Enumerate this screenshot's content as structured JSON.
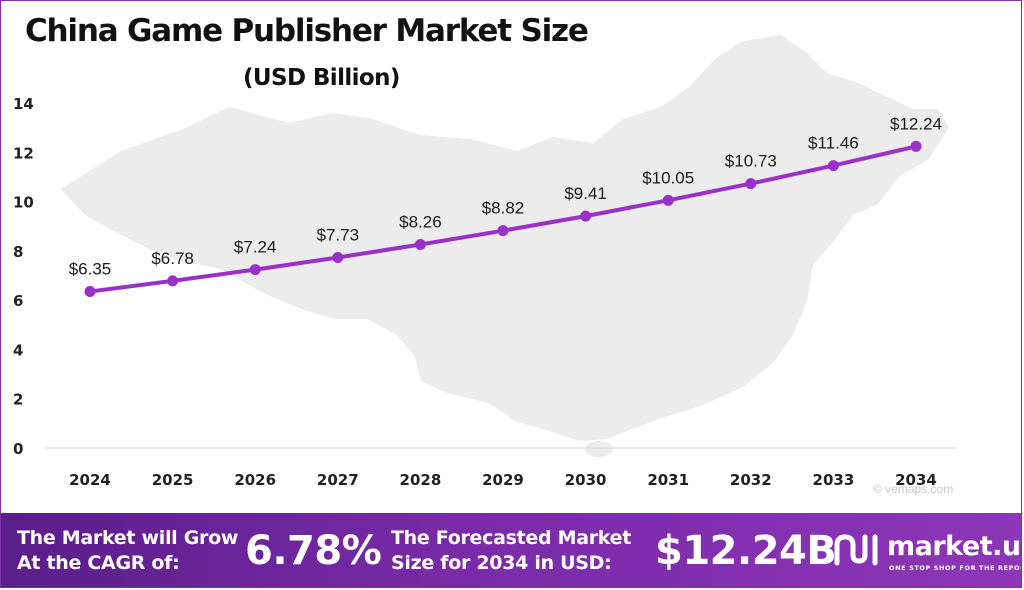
{
  "title": "China Game Publisher Market Size",
  "subtitle": "(USD Billion)",
  "footer": {
    "cagr_label_line1": "The Market will Grow",
    "cagr_label_line2": "At the CAGR of:",
    "cagr_value": "6.78%",
    "forecast_label_line1": "The Forecasted Market",
    "forecast_label_line2": "Size for 2034 in USD:",
    "forecast_value": "$12.24B",
    "brand_name": "market.us",
    "brand_tagline": "ONE STOP SHOP FOR THE REPORTS",
    "brand_icon": "market-us-logo-icon"
  },
  "watermark": "© vemaps.com",
  "colors": {
    "line": "#9b30c9",
    "marker": "#9b30c9",
    "footer_bg": "#7a2aa8",
    "map": "#ececec"
  },
  "chart_data": {
    "type": "line",
    "x": [
      "2024",
      "2025",
      "2026",
      "2027",
      "2028",
      "2029",
      "2030",
      "2031",
      "2032",
      "2033",
      "2034"
    ],
    "values": [
      6.35,
      6.78,
      7.24,
      7.73,
      8.26,
      8.82,
      9.41,
      10.05,
      10.73,
      11.46,
      12.24
    ],
    "data_labels": [
      "$6.35",
      "$6.78",
      "$7.24",
      "$7.73",
      "$8.26",
      "$8.82",
      "$9.41",
      "$10.05",
      "$10.73",
      "$11.46",
      "$12.24"
    ],
    "y_ticks": [
      0,
      2,
      4,
      6,
      8,
      10,
      12,
      14
    ],
    "ylim": [
      0,
      14
    ],
    "grid": false,
    "legend": "none",
    "background": "map of China"
  }
}
